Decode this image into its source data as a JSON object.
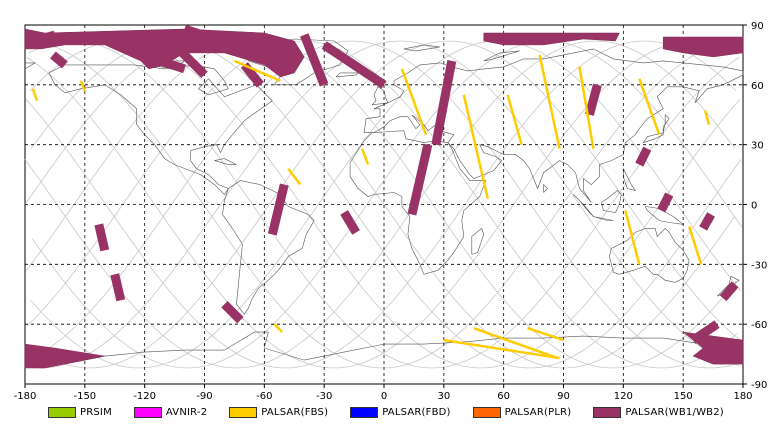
{
  "chart_data": {
    "type": "map",
    "projection": "equirectangular",
    "xlim": [
      -180,
      180
    ],
    "ylim": [
      -90,
      90
    ],
    "x_ticks": [
      -180,
      -150,
      -120,
      -90,
      -60,
      -30,
      0,
      30,
      60,
      90,
      120,
      150,
      180
    ],
    "y_ticks": [
      90,
      60,
      30,
      0,
      -30,
      -60,
      -90
    ],
    "grid": "dashed",
    "legend": [
      {
        "label": "PRSIM",
        "color": "#99cc00"
      },
      {
        "label": "AVNIR-2",
        "color": "#ff00ff"
      },
      {
        "label": "PALSAR(FBS)",
        "color": "#ffcc00"
      },
      {
        "label": "PALSAR(FBD)",
        "color": "#0000ff"
      },
      {
        "label": "PALSAR(PLR)",
        "color": "#ff6600"
      },
      {
        "label": "PALSAR(WB1/WB2)",
        "color": "#993366"
      }
    ],
    "wb_strips": [
      {
        "lon": [
          [
            -176,
            -172
          ],
          [
            -166,
            -160
          ],
          [
            -100,
            -70
          ],
          [
            -30,
            0
          ]
        ],
        "lat": [
          [
            85,
            80
          ],
          [
            75,
            70
          ],
          [
            88,
            78
          ],
          [
            80,
            60
          ]
        ]
      },
      {
        "lon": [
          -110,
          -90
        ],
        "lat": [
          85,
          65
        ]
      },
      {
        "lon": [
          -122,
          -100
        ],
        "lat": [
          75,
          68
        ]
      },
      {
        "lon": [
          -70,
          -62
        ],
        "lat": [
          70,
          60
        ]
      },
      {
        "lon": [
          -40,
          -30
        ],
        "lat": [
          85,
          60
        ]
      },
      {
        "lon": [
          -165,
          -175
        ],
        "lat": [
          85,
          82
        ]
      },
      {
        "lon": [
          34,
          26
        ],
        "lat": [
          72,
          30
        ]
      },
      {
        "lon": [
          22,
          14
        ],
        "lat": [
          30,
          -5
        ]
      },
      {
        "lon": [
          -50,
          -56
        ],
        "lat": [
          10,
          -15
        ]
      },
      {
        "lon": [
          -80,
          -72
        ],
        "lat": [
          -50,
          -58
        ]
      },
      {
        "lon": [
          -20,
          -14
        ],
        "lat": [
          -4,
          -14
        ]
      },
      {
        "lon": [
          -143,
          -140
        ],
        "lat": [
          -10,
          -23
        ]
      },
      {
        "lon": [
          -135,
          -132
        ],
        "lat": [
          -35,
          -48
        ]
      },
      {
        "lon": [
          107,
          103
        ],
        "lat": [
          60,
          45
        ]
      },
      {
        "lon": [
          132,
          128
        ],
        "lat": [
          28,
          20
        ]
      },
      {
        "lon": [
          143,
          139
        ],
        "lat": [
          5,
          -3
        ]
      },
      {
        "lon": [
          164,
          160
        ],
        "lat": [
          -5,
          -12
        ]
      },
      {
        "lon": [
          176,
          170
        ],
        "lat": [
          -40,
          -47
        ]
      },
      {
        "lon": [
          167,
          155
        ],
        "lat": [
          -60,
          -68
        ]
      }
    ],
    "fbs_tracks": [
      {
        "lon": [
          -75,
          -52
        ],
        "lat": [
          72,
          62
        ]
      },
      {
        "lon": [
          -152,
          -150
        ],
        "lat": [
          62,
          57
        ]
      },
      {
        "lon": [
          -176,
          -174
        ],
        "lat": [
          58,
          52
        ]
      },
      {
        "lon": [
          -48,
          -42
        ],
        "lat": [
          18,
          10
        ]
      },
      {
        "lon": [
          -55,
          -51
        ],
        "lat": [
          -60,
          -64
        ]
      },
      {
        "lon": [
          -11,
          -8
        ],
        "lat": [
          28,
          20
        ]
      },
      {
        "lon": [
          9,
          21
        ],
        "lat": [
          68,
          35
        ]
      },
      {
        "lon": [
          40,
          52
        ],
        "lat": [
          55,
          3
        ]
      },
      {
        "lon": [
          62,
          69
        ],
        "lat": [
          55,
          30
        ]
      },
      {
        "lon": [
          78,
          88
        ],
        "lat": [
          75,
          28
        ]
      },
      {
        "lon": [
          98,
          105
        ],
        "lat": [
          69,
          28
        ]
      },
      {
        "lon": [
          128,
          138
        ],
        "lat": [
          63,
          35
        ]
      },
      {
        "lon": [
          121,
          128
        ],
        "lat": [
          -3,
          -30
        ]
      },
      {
        "lon": [
          153,
          159
        ],
        "lat": [
          -11,
          -30
        ]
      },
      {
        "lon": [
          161,
          163
        ],
        "lat": [
          47,
          40
        ]
      },
      {
        "lon": [
          30,
          88
        ],
        "lat": [
          -68,
          -77
        ]
      },
      {
        "lon": [
          45,
          87
        ],
        "lat": [
          -62,
          -77
        ]
      },
      {
        "lon": [
          72,
          90
        ],
        "lat": [
          -62,
          -68
        ]
      }
    ]
  },
  "legend_labels": {
    "prsim": "PRSIM",
    "avnir": "AVNIR-2",
    "fbs": "PALSAR(FBS)",
    "fbd": "PALSAR(FBD)",
    "plr": "PALSAR(PLR)",
    "wb": "PALSAR(WB1/WB2)"
  }
}
